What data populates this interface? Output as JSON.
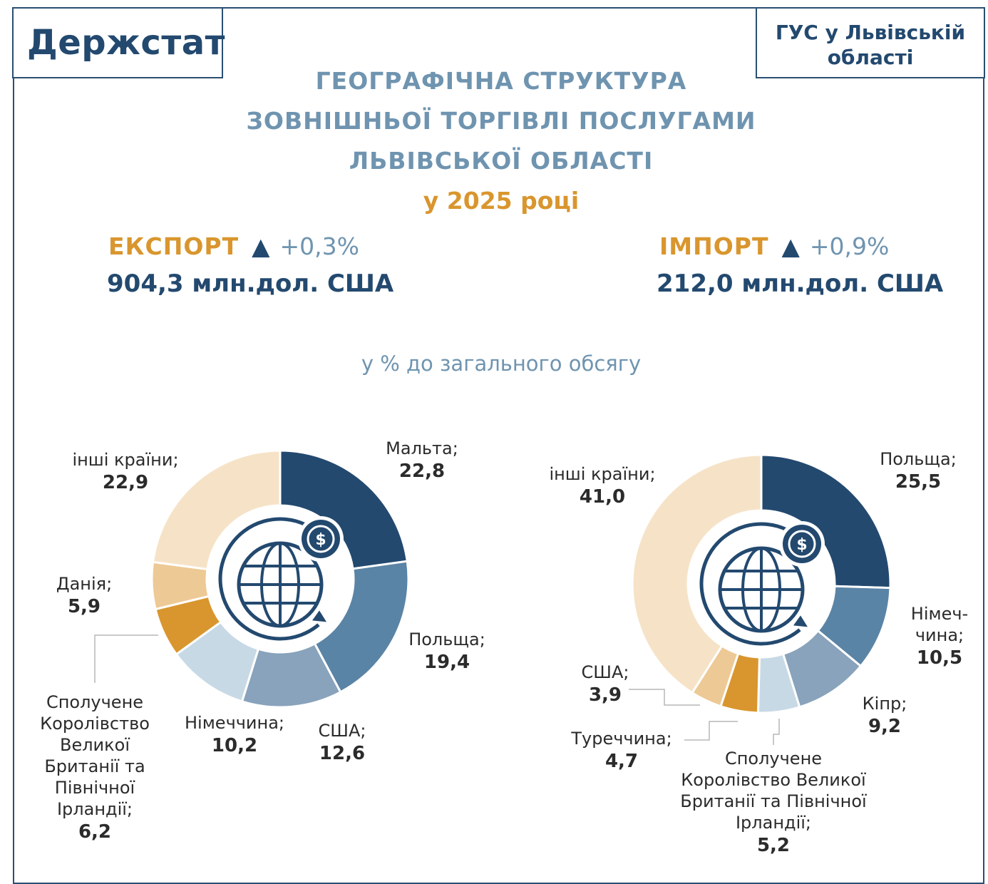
{
  "header": {
    "logo": "Держстат",
    "org_line1": "ГУС у Львівській",
    "org_line2": "області"
  },
  "title_lines": [
    "ГЕОГРАФІЧНА СТРУКТУРА",
    "ЗОВНІШНЬОЇ ТОРГІВЛІ ПОСЛУГАМИ",
    "ЛЬВІВСЬКОЇ ОБЛАСТІ"
  ],
  "subtitle": "у 2025 році",
  "export": {
    "label": "ЕКСПОРТ",
    "arrow": "▲",
    "change": "+0,3%",
    "value": "904,3 млн.дол. США"
  },
  "import": {
    "label": "ІМПОРТ",
    "arrow": "▲",
    "change": "+0,9%",
    "value": "212,0 млн.дол. США"
  },
  "caption": "у % до загального обсягу",
  "colors": {
    "frame": "#2a4f72",
    "dark_blue": "#23496f",
    "steel_blue": "#5a84a6",
    "blue_grey": "#88a3bb",
    "light_blue": "#c8d9e6",
    "orange": "#d9962e",
    "tan": "#edc995",
    "cream": "#f6e3c7"
  },
  "chart_data": [
    {
      "type": "pie",
      "name": "export",
      "unit": "%",
      "slices": [
        {
          "label_lines": [
            "Мальта;"
          ],
          "value": 22.8,
          "display": "22,8",
          "color": "#23496f"
        },
        {
          "label_lines": [
            "Польща;"
          ],
          "value": 19.4,
          "display": "19,4",
          "color": "#5a84a6"
        },
        {
          "label_lines": [
            "США;"
          ],
          "value": 12.6,
          "display": "12,6",
          "color": "#88a3bb"
        },
        {
          "label_lines": [
            "Німеччина;"
          ],
          "value": 10.2,
          "display": "10,2",
          "color": "#c8d9e6"
        },
        {
          "label_lines": [
            "Сполучене",
            "Королівство",
            "Великої",
            "Британії та",
            "Північної",
            "Ірландії;"
          ],
          "value": 6.2,
          "display": "6,2",
          "color": "#d9962e"
        },
        {
          "label_lines": [
            "Данія;"
          ],
          "value": 5.9,
          "display": "5,9",
          "color": "#edc995"
        },
        {
          "label_lines": [
            "інші країни;"
          ],
          "value": 22.9,
          "display": "22,9",
          "color": "#f6e3c7"
        }
      ]
    },
    {
      "type": "pie",
      "name": "import",
      "unit": "%",
      "slices": [
        {
          "label_lines": [
            "Польща;"
          ],
          "value": 25.5,
          "display": "25,5",
          "color": "#23496f"
        },
        {
          "label_lines": [
            "Німеч-",
            "чина;"
          ],
          "value": 10.5,
          "display": "10,5",
          "color": "#5a84a6"
        },
        {
          "label_lines": [
            "Кіпр;"
          ],
          "value": 9.2,
          "display": "9,2",
          "color": "#88a3bb"
        },
        {
          "label_lines": [
            "Сполучене",
            "Королівство Великої",
            "Британії та Північної",
            "Ірландії;"
          ],
          "value": 5.2,
          "display": "5,2",
          "color": "#c8d9e6"
        },
        {
          "label_lines": [
            "Туреччина;"
          ],
          "value": 4.7,
          "display": "4,7",
          "color": "#d9962e"
        },
        {
          "label_lines": [
            "США;"
          ],
          "value": 3.9,
          "display": "3,9",
          "color": "#edc995"
        },
        {
          "label_lines": [
            "інші країни;"
          ],
          "value": 41.0,
          "display": "41,0",
          "color": "#f6e3c7"
        }
      ]
    }
  ]
}
